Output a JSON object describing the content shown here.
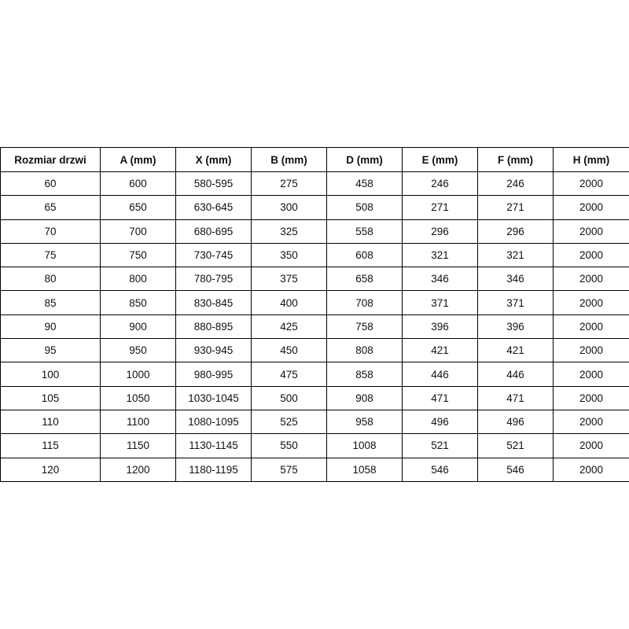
{
  "table": {
    "headers": [
      "Rozmiar drzwi",
      "A (mm)",
      "X (mm)",
      "B (mm)",
      "D (mm)",
      "E (mm)",
      "F (mm)",
      "H (mm)"
    ],
    "rows": [
      [
        "60",
        "600",
        "580-595",
        "275",
        "458",
        "246",
        "246",
        "2000"
      ],
      [
        "65",
        "650",
        "630-645",
        "300",
        "508",
        "271",
        "271",
        "2000"
      ],
      [
        "70",
        "700",
        "680-695",
        "325",
        "558",
        "296",
        "296",
        "2000"
      ],
      [
        "75",
        "750",
        "730-745",
        "350",
        "608",
        "321",
        "321",
        "2000"
      ],
      [
        "80",
        "800",
        "780-795",
        "375",
        "658",
        "346",
        "346",
        "2000"
      ],
      [
        "85",
        "850",
        "830-845",
        "400",
        "708",
        "371",
        "371",
        "2000"
      ],
      [
        "90",
        "900",
        "880-895",
        "425",
        "758",
        "396",
        "396",
        "2000"
      ],
      [
        "95",
        "950",
        "930-945",
        "450",
        "808",
        "421",
        "421",
        "2000"
      ],
      [
        "100",
        "1000",
        "980-995",
        "475",
        "858",
        "446",
        "446",
        "2000"
      ],
      [
        "105",
        "1050",
        "1030-1045",
        "500",
        "908",
        "471",
        "471",
        "2000"
      ],
      [
        "110",
        "1100",
        "1080-1095",
        "525",
        "958",
        "496",
        "496",
        "2000"
      ],
      [
        "115",
        "1150",
        "1130-1145",
        "550",
        "1008",
        "521",
        "521",
        "2000"
      ],
      [
        "120",
        "1200",
        "1180-1195",
        "575",
        "1058",
        "546",
        "546",
        "2000"
      ]
    ]
  }
}
